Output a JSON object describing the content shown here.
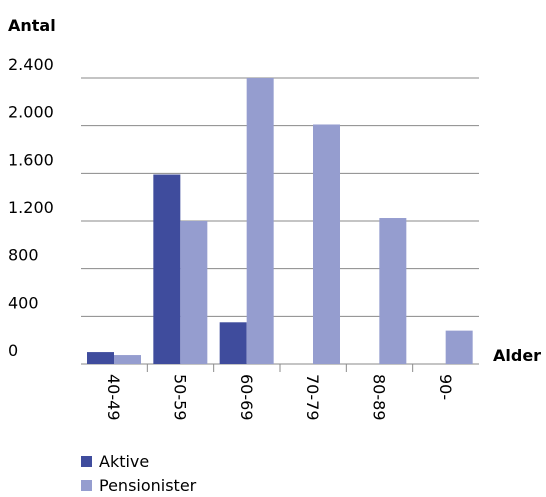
{
  "chart_data": {
    "type": "bar",
    "ylabel": "Antal",
    "xlabel": "Alder",
    "categories": [
      "40-49",
      "50-59",
      "60-69",
      "70-79",
      "80-89",
      "90-"
    ],
    "series": [
      {
        "name": "Aktive",
        "values": [
          100,
          1590,
          350,
          0,
          0,
          0
        ],
        "color": "#3f4c9d"
      },
      {
        "name": "Pensionister",
        "values": [
          75,
          1200,
          2400,
          2010,
          1225,
          280
        ],
        "color": "#959dcf"
      }
    ],
    "yticks": [
      0,
      400,
      800,
      1200,
      1600,
      2000,
      2400
    ],
    "ytick_labels": [
      "0",
      "400",
      "800",
      "1.200",
      "1.600",
      "2.000",
      "2.400"
    ],
    "ylim": [
      0,
      2400
    ],
    "grid": true,
    "legend_position": "bottom-left",
    "gridline_color": "#8a8a8a"
  }
}
